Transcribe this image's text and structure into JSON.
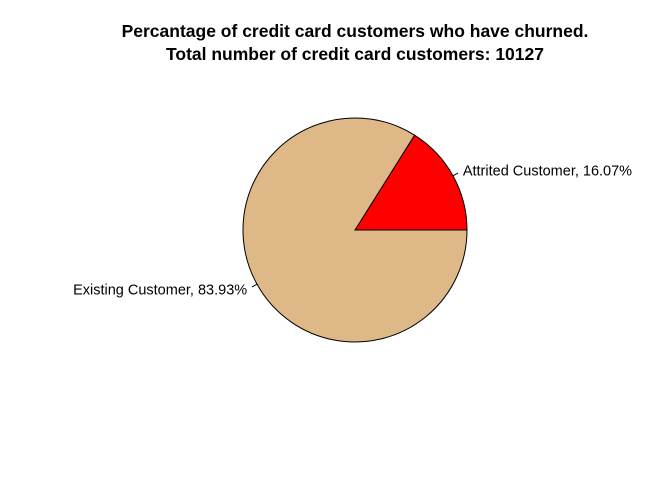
{
  "chart_data": {
    "type": "pie",
    "title": "Percantage of credit card customers who have churned.",
    "subtitle": "Total number of credit card customers: 10127",
    "slices": [
      {
        "category": "Attrited Customer",
        "percent": 16.07,
        "label": "Attrited Customer, 16.07%",
        "color": "#ff0000"
      },
      {
        "category": "Existing Customer",
        "percent": 83.93,
        "label": "Existing Customer, 83.93%",
        "color": "#deb887"
      }
    ],
    "legend": "none",
    "grid": false
  }
}
